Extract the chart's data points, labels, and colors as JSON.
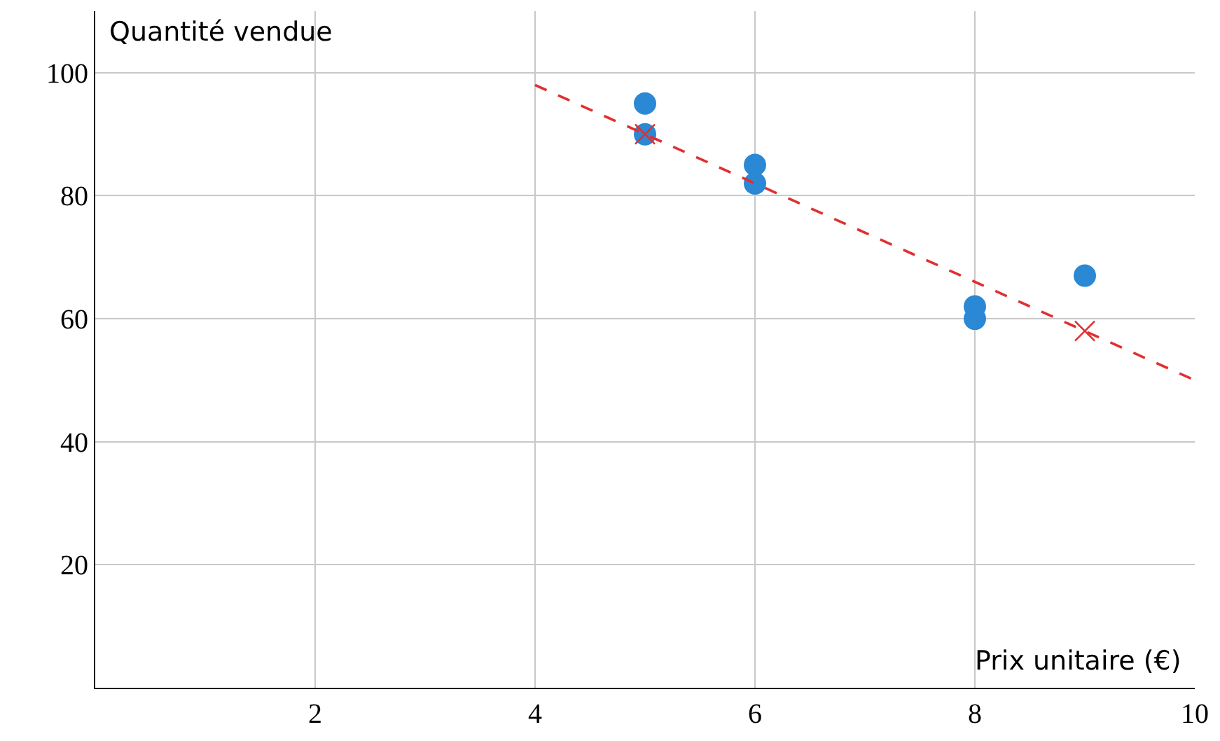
{
  "chart_data": {
    "type": "scatter",
    "xlabel": "Prix unitaire (€)",
    "ylabel": "Quantité vendue",
    "xlim": [
      0,
      10
    ],
    "ylim": [
      0,
      110
    ],
    "xticks": [
      2,
      4,
      6,
      8,
      10
    ],
    "yticks": [
      20,
      40,
      60,
      80,
      100
    ],
    "grid": true,
    "marker": "circle",
    "series": [
      {
        "color": "#2b88d4",
        "x": [
          5,
          5,
          6,
          6,
          8,
          8,
          9
        ],
        "values": [
          95,
          90,
          85,
          82,
          62,
          60,
          67
        ]
      },
      {
        "color": "#e03030",
        "marker": "cross",
        "x": [
          5,
          9
        ],
        "values": [
          90,
          58
        ]
      },
      {
        "type": "line",
        "color": "#e03030",
        "line_style": "dashed",
        "marker": "none",
        "x": [
          4,
          10
        ],
        "values": [
          98,
          50
        ]
      }
    ]
  }
}
